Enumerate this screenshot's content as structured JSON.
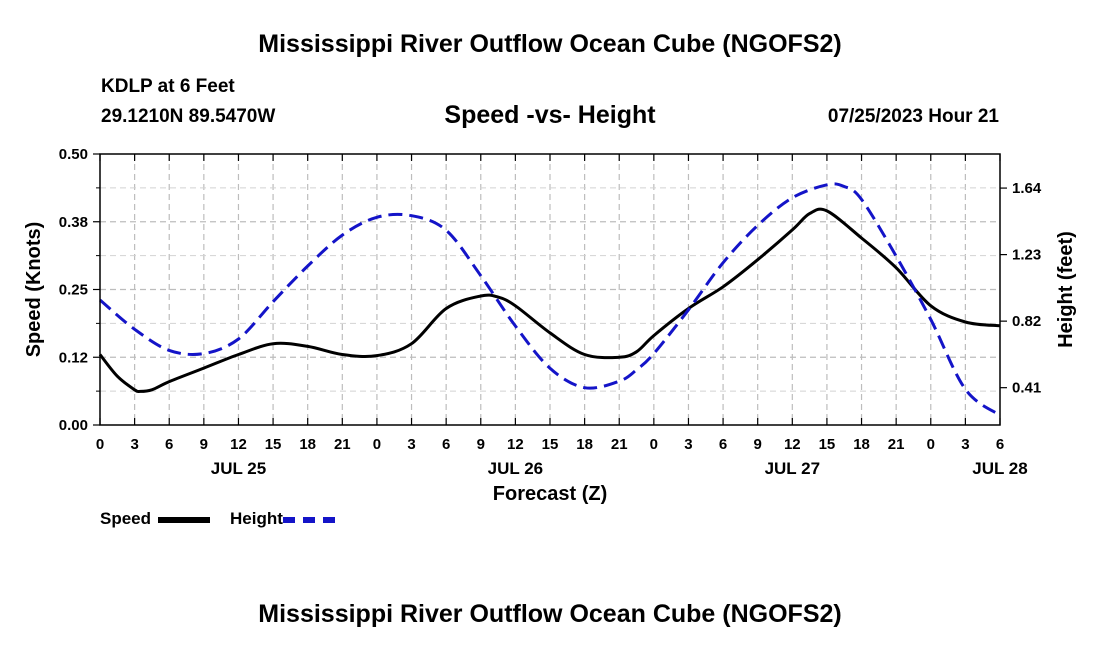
{
  "header": {
    "title": "Mississippi River Outflow Ocean Cube (NGOFS2)",
    "station": "KDLP at 6 Feet",
    "coords": "29.1210N  89.5470W",
    "subtitle": "Speed -vs- Height",
    "run_time": "07/25/2023 Hour 21"
  },
  "footer": {
    "title": "Mississippi River Outflow Ocean Cube (NGOFS2)"
  },
  "legend": {
    "speed_label": "Speed",
    "height_label": "Height",
    "speed_color": "#000000",
    "height_color": "#1414c8"
  },
  "chart_data": {
    "type": "line",
    "title": "Speed -vs- Height",
    "xlabel": "Forecast (Z)",
    "ylabel": "Speed (Knots)",
    "y2label": "Height (feet)",
    "x_hours_range": [
      0,
      78
    ],
    "x_tick_hours": [
      0,
      3,
      6,
      9,
      12,
      15,
      18,
      21,
      24,
      27,
      30,
      33,
      36,
      39,
      42,
      45,
      48,
      51,
      54,
      57,
      60,
      63,
      66,
      69,
      72,
      75,
      78
    ],
    "x_tick_labels": [
      "0",
      "3",
      "6",
      "9",
      "12",
      "15",
      "18",
      "21",
      "0",
      "3",
      "6",
      "9",
      "12",
      "15",
      "18",
      "21",
      "0",
      "3",
      "6",
      "9",
      "12",
      "15",
      "18",
      "21",
      "0",
      "3",
      "6"
    ],
    "date_labels": [
      {
        "hour": 12,
        "label": "JUL 25"
      },
      {
        "hour": 36,
        "label": "JUL 26"
      },
      {
        "hour": 60,
        "label": "JUL 27"
      },
      {
        "hour": 78,
        "label": "JUL 28"
      }
    ],
    "ylim": [
      0,
      0.5
    ],
    "y_ticks": [
      0.0,
      0.125,
      0.25,
      0.375,
      0.5
    ],
    "y_tick_labels": [
      "0.00",
      "0.12",
      "0.25",
      "0.38",
      "0.50"
    ],
    "y2lim": [
      0.18,
      1.85
    ],
    "y2_ticks": [
      0.41,
      0.82,
      1.23,
      1.64
    ],
    "y2_tick_labels": [
      "0.41",
      "0.82",
      "1.23",
      "1.64"
    ],
    "grid": true,
    "series": [
      {
        "name": "Speed",
        "axis": "left",
        "style": "solid",
        "x": [
          0,
          1.5,
          3,
          3.5,
          4.5,
          6,
          9,
          12,
          15,
          18,
          21,
          24,
          27,
          30,
          33,
          34.5,
          36,
          39,
          42,
          45,
          46.5,
          48,
          51,
          54,
          57,
          60,
          61.5,
          63,
          66,
          69,
          72,
          75,
          78
        ],
        "values": [
          0.13,
          0.09,
          0.065,
          0.062,
          0.065,
          0.08,
          0.105,
          0.13,
          0.15,
          0.145,
          0.13,
          0.128,
          0.15,
          0.215,
          0.238,
          0.236,
          0.22,
          0.17,
          0.13,
          0.125,
          0.135,
          0.165,
          0.215,
          0.255,
          0.305,
          0.36,
          0.39,
          0.395,
          0.345,
          0.29,
          0.22,
          0.19,
          0.183
        ]
      },
      {
        "name": "Height",
        "axis": "right",
        "style": "dashed",
        "x": [
          0,
          3,
          6,
          9,
          12,
          15,
          18,
          21,
          24,
          27,
          30,
          33,
          36,
          39,
          42,
          45,
          46.5,
          48,
          51,
          54,
          57,
          60,
          63,
          64.5,
          66,
          69,
          72,
          75,
          78
        ],
        "values": [
          0.95,
          0.77,
          0.64,
          0.62,
          0.71,
          0.94,
          1.16,
          1.35,
          1.46,
          1.47,
          1.38,
          1.1,
          0.79,
          0.53,
          0.41,
          0.45,
          0.52,
          0.62,
          0.89,
          1.18,
          1.41,
          1.58,
          1.66,
          1.65,
          1.57,
          1.22,
          0.83,
          0.4,
          0.24
        ]
      }
    ]
  }
}
